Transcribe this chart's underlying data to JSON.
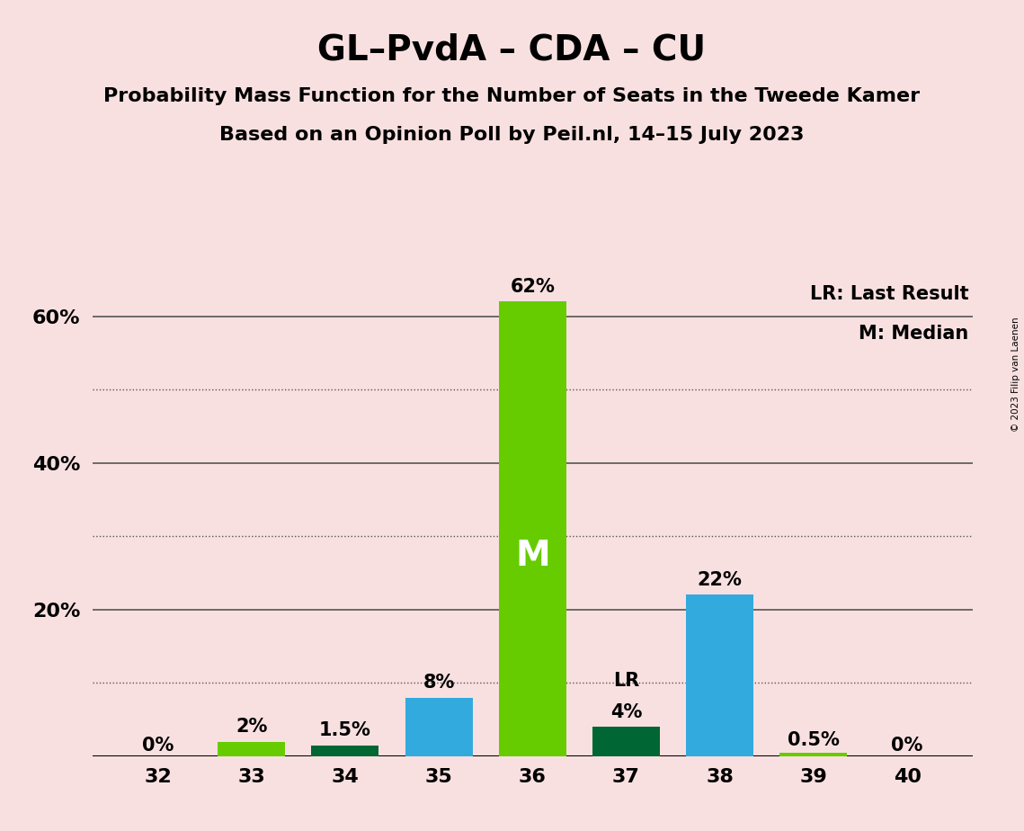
{
  "title": "GL–PvdA – CDA – CU",
  "subtitle1": "Probability Mass Function for the Number of Seats in the Tweede Kamer",
  "subtitle2": "Based on an Opinion Poll by Peil.nl, 14–15 July 2023",
  "copyright": "© 2023 Filip van Laenen",
  "x_values": [
    32,
    33,
    34,
    35,
    36,
    37,
    38,
    39,
    40
  ],
  "y_values": [
    0.0,
    2.0,
    1.5,
    8.0,
    62.0,
    4.0,
    22.0,
    0.5,
    0.0
  ],
  "bar_colors": [
    "#66cc00",
    "#66cc00",
    "#006633",
    "#33aadd",
    "#66cc00",
    "#006633",
    "#33aadd",
    "#66cc00",
    "#66cc00"
  ],
  "labels": [
    "0%",
    "2%",
    "1.5%",
    "8%",
    "62%",
    "4%",
    "22%",
    "0.5%",
    "0%"
  ],
  "median_bar": 36,
  "lr_bar": 37,
  "ylim": [
    0,
    68
  ],
  "background_color": "#f9e0e0",
  "grid_color": "#555555",
  "solid_grid_levels": [
    20,
    40,
    60
  ],
  "dotted_grid_levels": [
    10,
    30,
    50
  ],
  "title_fontsize": 28,
  "subtitle_fontsize": 16,
  "label_fontsize": 15,
  "legend_fontsize": 15,
  "tick_fontsize": 16,
  "bar_width": 0.72
}
